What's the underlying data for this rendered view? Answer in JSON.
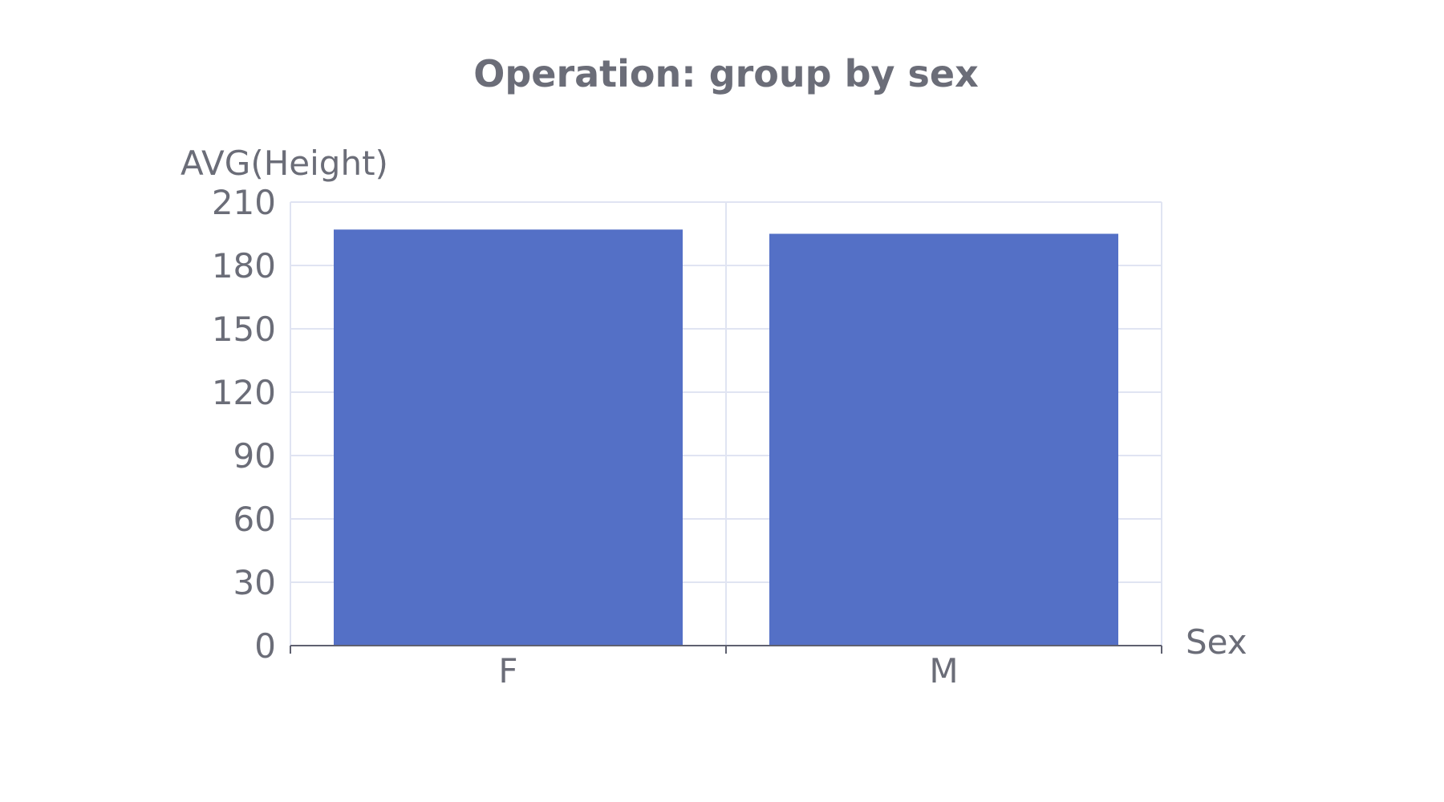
{
  "chart_data": {
    "type": "bar",
    "title": "Operation: group by sex",
    "xlabel": "Sex",
    "ylabel": "AVG(Height)",
    "categories": [
      "F",
      "M"
    ],
    "values": [
      197,
      195
    ],
    "ylim": [
      0,
      210
    ],
    "yticks": [
      0,
      30,
      60,
      90,
      120,
      150,
      180,
      210
    ],
    "grid": true,
    "bar_color": "#5470c6",
    "text_color": "#6b6d78",
    "grid_color": "#e0e4f2"
  }
}
